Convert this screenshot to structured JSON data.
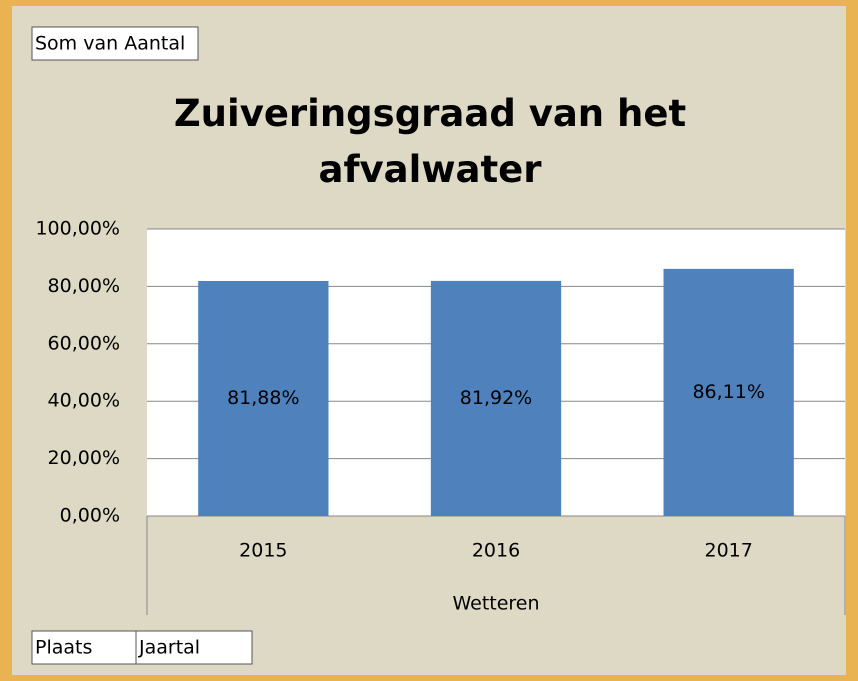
{
  "chart_data": {
    "type": "bar",
    "title": "Zuiveringsgraad van het afvalwater",
    "categories": [
      "2015",
      "2016",
      "2017"
    ],
    "group_label": "Wetteren",
    "values": [
      81.88,
      81.92,
      86.11
    ],
    "value_labels": [
      "81,88%",
      "81,92%",
      "86,11%"
    ],
    "color": "#4f81bd",
    "ylim": [
      0,
      100
    ],
    "yticks": [
      {
        "value": 0,
        "label": "0,00%"
      },
      {
        "value": 20,
        "label": "20,00%"
      },
      {
        "value": 40,
        "label": "40,00%"
      },
      {
        "value": 60,
        "label": "60,00%"
      },
      {
        "value": 80,
        "label": "80,00%"
      },
      {
        "value": 100,
        "label": "100,00%"
      }
    ],
    "grid": true,
    "field_buttons": {
      "value_field": "Som van Aantal",
      "axis_fields": [
        "Plaats",
        "Jaartal"
      ]
    }
  }
}
